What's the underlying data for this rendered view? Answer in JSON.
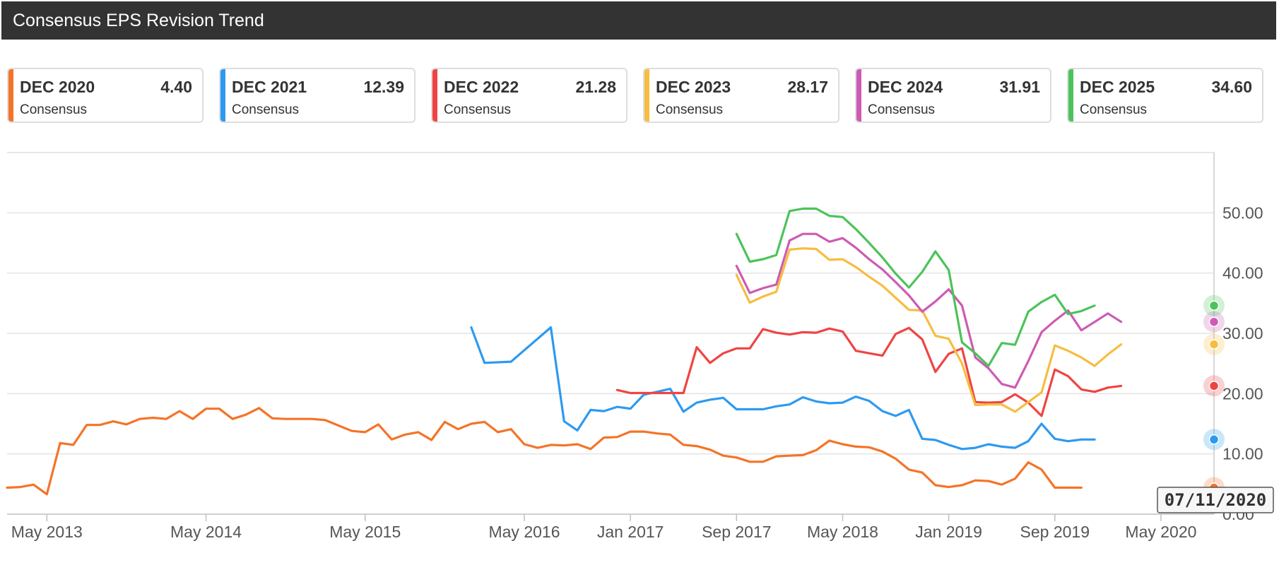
{
  "header": {
    "title": "Consensus EPS Revision Trend"
  },
  "legend": [
    {
      "label": "DEC 2020",
      "value": "4.40",
      "sub": "Consensus",
      "color": "#f47428"
    },
    {
      "label": "DEC 2021",
      "value": "12.39",
      "sub": "Consensus",
      "color": "#2d9af0"
    },
    {
      "label": "DEC 2022",
      "value": "21.28",
      "sub": "Consensus",
      "color": "#ef4444"
    },
    {
      "label": "DEC 2023",
      "value": "28.17",
      "sub": "Consensus",
      "color": "#f7bd41"
    },
    {
      "label": "DEC 2024",
      "value": "31.91",
      "sub": "Consensus",
      "color": "#cd5bb3"
    },
    {
      "label": "DEC 2025",
      "value": "34.60",
      "sub": "Consensus",
      "color": "#4cc35a"
    }
  ],
  "tooltip": {
    "date": "07/11/2020"
  },
  "chart_data": {
    "type": "line",
    "title": "Consensus EPS Revision Trend",
    "xlabel": "",
    "ylabel": "",
    "x_unit": "month",
    "xlim": [
      "2013-02",
      "2020-09"
    ],
    "ylim": [
      0,
      60
    ],
    "y_ticks": [
      "0.00",
      "10.00",
      "20.00",
      "30.00",
      "40.00",
      "50.00"
    ],
    "x_ticks": [
      {
        "label": "May 2013",
        "x": "2013-05"
      },
      {
        "label": "May 2014",
        "x": "2014-05"
      },
      {
        "label": "May 2015",
        "x": "2015-05"
      },
      {
        "label": "May 2016",
        "x": "2016-05"
      },
      {
        "label": "Jan 2017",
        "x": "2017-01"
      },
      {
        "label": "Sep 2017",
        "x": "2017-09"
      },
      {
        "label": "May 2018",
        "x": "2018-05"
      },
      {
        "label": "Jan 2019",
        "x": "2019-01"
      },
      {
        "label": "Sep 2019",
        "x": "2019-09"
      },
      {
        "label": "May 2020",
        "x": "2020-05"
      }
    ],
    "grid": true,
    "legend_position": "top",
    "series": [
      {
        "name": "DEC 2020",
        "color": "#f47428",
        "points": [
          [
            "2013-02",
            4.4
          ],
          [
            "2013-03",
            4.5
          ],
          [
            "2013-04",
            4.9
          ],
          [
            "2013-05",
            3.3
          ],
          [
            "2013-06",
            11.8
          ],
          [
            "2013-07",
            11.5
          ],
          [
            "2013-08",
            14.8
          ],
          [
            "2013-09",
            14.8
          ],
          [
            "2013-10",
            15.4
          ],
          [
            "2013-11",
            14.9
          ],
          [
            "2013-12",
            15.8
          ],
          [
            "2014-01",
            16.0
          ],
          [
            "2014-02",
            15.8
          ],
          [
            "2014-03",
            17.1
          ],
          [
            "2014-04",
            15.8
          ],
          [
            "2014-05",
            17.5
          ],
          [
            "2014-06",
            17.5
          ],
          [
            "2014-07",
            15.8
          ],
          [
            "2014-08",
            16.5
          ],
          [
            "2014-09",
            17.6
          ],
          [
            "2014-10",
            15.9
          ],
          [
            "2014-11",
            15.8
          ],
          [
            "2014-12",
            15.8
          ],
          [
            "2015-01",
            15.8
          ],
          [
            "2015-02",
            15.6
          ],
          [
            "2015-03",
            14.7
          ],
          [
            "2015-04",
            13.8
          ],
          [
            "2015-05",
            13.6
          ],
          [
            "2015-06",
            14.9
          ],
          [
            "2015-07",
            12.4
          ],
          [
            "2015-08",
            13.2
          ],
          [
            "2015-09",
            13.6
          ],
          [
            "2015-10",
            12.3
          ],
          [
            "2015-11",
            15.3
          ],
          [
            "2015-12",
            14.1
          ],
          [
            "2016-01",
            15.0
          ],
          [
            "2016-02",
            15.3
          ],
          [
            "2016-03",
            13.6
          ],
          [
            "2016-04",
            14.1
          ],
          [
            "2016-05",
            11.6
          ],
          [
            "2016-06",
            11.0
          ],
          [
            "2016-07",
            11.5
          ],
          [
            "2016-08",
            11.4
          ],
          [
            "2016-09",
            11.6
          ],
          [
            "2016-10",
            10.8
          ],
          [
            "2016-11",
            12.7
          ],
          [
            "2016-12",
            12.8
          ],
          [
            "2017-01",
            13.7
          ],
          [
            "2017-02",
            13.7
          ],
          [
            "2017-03",
            13.4
          ],
          [
            "2017-04",
            13.2
          ],
          [
            "2017-05",
            11.5
          ],
          [
            "2017-06",
            11.3
          ],
          [
            "2017-07",
            10.7
          ],
          [
            "2017-08",
            9.7
          ],
          [
            "2017-09",
            9.4
          ],
          [
            "2017-10",
            8.7
          ],
          [
            "2017-11",
            8.7
          ],
          [
            "2017-12",
            9.6
          ],
          [
            "2018-01",
            9.7
          ],
          [
            "2018-02",
            9.8
          ],
          [
            "2018-03",
            10.6
          ],
          [
            "2018-04",
            12.2
          ],
          [
            "2018-05",
            11.6
          ],
          [
            "2018-06",
            11.2
          ],
          [
            "2018-07",
            11.1
          ],
          [
            "2018-08",
            10.4
          ],
          [
            "2018-09",
            9.2
          ],
          [
            "2018-10",
            7.4
          ],
          [
            "2018-11",
            6.9
          ],
          [
            "2018-12",
            4.8
          ],
          [
            "2019-01",
            4.5
          ],
          [
            "2019-02",
            4.8
          ],
          [
            "2019-03",
            5.6
          ],
          [
            "2019-04",
            5.5
          ],
          [
            "2019-05",
            4.9
          ],
          [
            "2019-06",
            5.9
          ],
          [
            "2019-07",
            8.6
          ],
          [
            "2019-08",
            7.4
          ],
          [
            "2019-09",
            4.4
          ],
          [
            "2019-10",
            4.4
          ],
          [
            "2019-11",
            4.4
          ]
        ]
      },
      {
        "name": "DEC 2021",
        "color": "#2d9af0",
        "points": [
          [
            "2016-01",
            31.0
          ],
          [
            "2016-02",
            25.1
          ],
          [
            "2016-04",
            25.3
          ],
          [
            "2016-07",
            31.0
          ],
          [
            "2016-08",
            15.4
          ],
          [
            "2016-09",
            13.9
          ],
          [
            "2016-10",
            17.3
          ],
          [
            "2016-11",
            17.1
          ],
          [
            "2016-12",
            17.8
          ],
          [
            "2017-01",
            17.5
          ],
          [
            "2017-02",
            19.8
          ],
          [
            "2017-04",
            20.8
          ],
          [
            "2017-05",
            17.0
          ],
          [
            "2017-06",
            18.5
          ],
          [
            "2017-07",
            19.0
          ],
          [
            "2017-08",
            19.3
          ],
          [
            "2017-09",
            17.4
          ],
          [
            "2017-11",
            17.4
          ],
          [
            "2017-12",
            17.9
          ],
          [
            "2018-01",
            18.2
          ],
          [
            "2018-02",
            19.4
          ],
          [
            "2018-03",
            18.7
          ],
          [
            "2018-04",
            18.4
          ],
          [
            "2018-05",
            18.5
          ],
          [
            "2018-06",
            19.5
          ],
          [
            "2018-07",
            18.8
          ],
          [
            "2018-08",
            17.1
          ],
          [
            "2018-09",
            16.3
          ],
          [
            "2018-10",
            17.3
          ],
          [
            "2018-11",
            12.5
          ],
          [
            "2018-12",
            12.3
          ],
          [
            "2019-01",
            11.5
          ],
          [
            "2019-02",
            10.8
          ],
          [
            "2019-03",
            11.0
          ],
          [
            "2019-04",
            11.6
          ],
          [
            "2019-05",
            11.2
          ],
          [
            "2019-06",
            11.0
          ],
          [
            "2019-07",
            12.1
          ],
          [
            "2019-08",
            15.0
          ],
          [
            "2019-09",
            12.5
          ],
          [
            "2019-10",
            12.1
          ],
          [
            "2019-11",
            12.39
          ],
          [
            "2019-12",
            12.39
          ]
        ]
      },
      {
        "name": "DEC 2022",
        "color": "#ef4444",
        "points": [
          [
            "2016-12",
            20.6
          ],
          [
            "2017-01",
            20.1
          ],
          [
            "2017-03",
            20.1
          ],
          [
            "2017-05",
            20.1
          ],
          [
            "2017-06",
            27.7
          ],
          [
            "2017-07",
            25.1
          ],
          [
            "2017-08",
            26.7
          ],
          [
            "2017-09",
            27.5
          ],
          [
            "2017-10",
            27.5
          ],
          [
            "2017-11",
            30.7
          ],
          [
            "2017-12",
            30.1
          ],
          [
            "2018-01",
            29.8
          ],
          [
            "2018-02",
            30.2
          ],
          [
            "2018-03",
            30.1
          ],
          [
            "2018-04",
            30.8
          ],
          [
            "2018-05",
            30.3
          ],
          [
            "2018-06",
            27.1
          ],
          [
            "2018-07",
            26.7
          ],
          [
            "2018-08",
            26.3
          ],
          [
            "2018-09",
            29.9
          ],
          [
            "2018-10",
            30.9
          ],
          [
            "2018-11",
            29.0
          ],
          [
            "2018-12",
            23.6
          ],
          [
            "2019-01",
            26.6
          ],
          [
            "2019-02",
            27.5
          ],
          [
            "2019-03",
            18.6
          ],
          [
            "2019-04",
            18.5
          ],
          [
            "2019-05",
            18.6
          ],
          [
            "2019-06",
            19.9
          ],
          [
            "2019-07",
            18.5
          ],
          [
            "2019-08",
            16.3
          ],
          [
            "2019-09",
            24.0
          ],
          [
            "2019-10",
            22.9
          ],
          [
            "2019-11",
            20.7
          ],
          [
            "2019-12",
            20.3
          ],
          [
            "2020-01",
            21.0
          ],
          [
            "2020-02",
            21.28
          ]
        ]
      },
      {
        "name": "DEC 2023",
        "color": "#f7bd41",
        "points": [
          [
            "2017-09",
            39.7
          ],
          [
            "2017-10",
            35.1
          ],
          [
            "2017-11",
            36.1
          ],
          [
            "2017-12",
            36.9
          ],
          [
            "2018-01",
            43.9
          ],
          [
            "2018-02",
            44.1
          ],
          [
            "2018-03",
            44.0
          ],
          [
            "2018-04",
            42.2
          ],
          [
            "2018-05",
            42.3
          ],
          [
            "2018-06",
            41.0
          ],
          [
            "2018-07",
            39.4
          ],
          [
            "2018-08",
            37.9
          ],
          [
            "2018-09",
            35.9
          ],
          [
            "2018-10",
            33.9
          ],
          [
            "2018-11",
            33.8
          ],
          [
            "2018-12",
            29.6
          ],
          [
            "2019-01",
            29.1
          ],
          [
            "2019-02",
            25.0
          ],
          [
            "2019-03",
            18.1
          ],
          [
            "2019-04",
            18.2
          ],
          [
            "2019-05",
            18.2
          ],
          [
            "2019-06",
            17.0
          ],
          [
            "2019-07",
            18.6
          ],
          [
            "2019-08",
            20.2
          ],
          [
            "2019-09",
            28.0
          ],
          [
            "2019-10",
            27.1
          ],
          [
            "2019-11",
            26.0
          ],
          [
            "2019-12",
            24.6
          ],
          [
            "2020-01",
            26.5
          ],
          [
            "2020-02",
            28.17
          ]
        ]
      },
      {
        "name": "DEC 2024",
        "color": "#cd5bb3",
        "points": [
          [
            "2017-09",
            41.2
          ],
          [
            "2017-10",
            36.7
          ],
          [
            "2017-11",
            37.5
          ],
          [
            "2017-12",
            38.1
          ],
          [
            "2018-01",
            45.4
          ],
          [
            "2018-02",
            46.5
          ],
          [
            "2018-03",
            46.5
          ],
          [
            "2018-04",
            45.2
          ],
          [
            "2018-05",
            45.8
          ],
          [
            "2018-06",
            44.2
          ],
          [
            "2018-07",
            42.3
          ],
          [
            "2018-08",
            40.6
          ],
          [
            "2018-09",
            38.5
          ],
          [
            "2018-10",
            36.3
          ],
          [
            "2018-11",
            33.6
          ],
          [
            "2018-12",
            35.3
          ],
          [
            "2019-01",
            37.3
          ],
          [
            "2019-02",
            34.6
          ],
          [
            "2019-03",
            26.0
          ],
          [
            "2019-04",
            24.2
          ],
          [
            "2019-05",
            21.6
          ],
          [
            "2019-06",
            21.0
          ],
          [
            "2019-07",
            25.4
          ],
          [
            "2019-08",
            30.2
          ],
          [
            "2019-09",
            32.1
          ],
          [
            "2019-10",
            33.8
          ],
          [
            "2019-11",
            30.5
          ],
          [
            "2019-12",
            31.9
          ],
          [
            "2020-01",
            33.3
          ],
          [
            "2020-02",
            31.91
          ]
        ]
      },
      {
        "name": "DEC 2025",
        "color": "#4cc35a",
        "points": [
          [
            "2017-09",
            46.5
          ],
          [
            "2017-10",
            41.9
          ],
          [
            "2017-11",
            42.3
          ],
          [
            "2017-12",
            43.0
          ],
          [
            "2018-01",
            50.3
          ],
          [
            "2018-02",
            50.7
          ],
          [
            "2018-03",
            50.7
          ],
          [
            "2018-04",
            49.5
          ],
          [
            "2018-05",
            49.3
          ],
          [
            "2018-06",
            47.3
          ],
          [
            "2018-07",
            45.0
          ],
          [
            "2018-08",
            42.6
          ],
          [
            "2018-09",
            39.9
          ],
          [
            "2018-10",
            37.6
          ],
          [
            "2018-11",
            40.2
          ],
          [
            "2018-12",
            43.6
          ],
          [
            "2019-01",
            40.5
          ],
          [
            "2019-02",
            28.5
          ],
          [
            "2019-03",
            26.7
          ],
          [
            "2019-04",
            24.6
          ],
          [
            "2019-05",
            28.4
          ],
          [
            "2019-06",
            28.1
          ],
          [
            "2019-07",
            33.6
          ],
          [
            "2019-08",
            35.2
          ],
          [
            "2019-09",
            36.4
          ],
          [
            "2019-10",
            33.2
          ],
          [
            "2019-11",
            33.7
          ],
          [
            "2019-12",
            34.6
          ]
        ]
      }
    ]
  }
}
